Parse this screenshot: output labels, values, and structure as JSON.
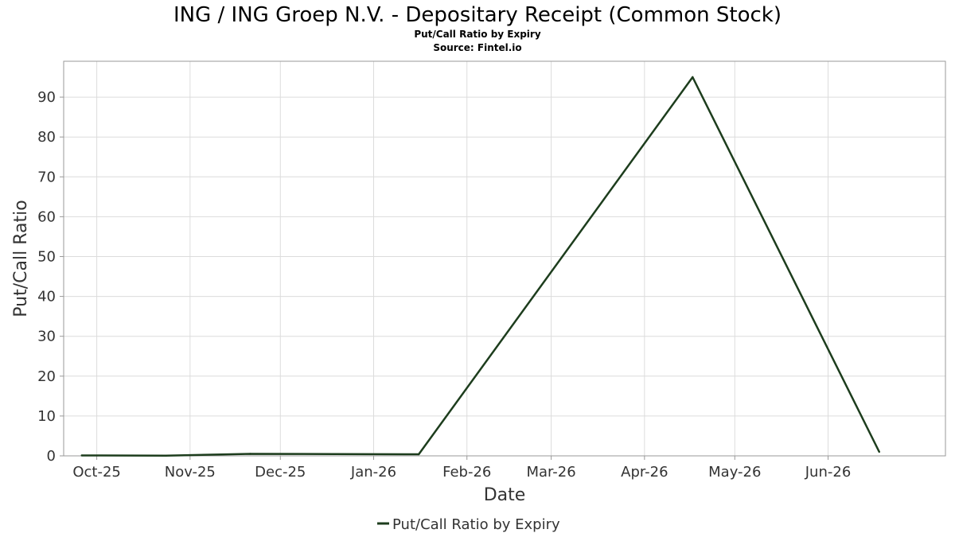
{
  "chart_data": {
    "type": "line",
    "title": "ING / ING Groep N.V. - Depositary Receipt (Common Stock)",
    "subtitle": "Put/Call Ratio by Expiry",
    "source": "Source: Fintel.io",
    "xlabel": "Date",
    "ylabel": "Put/Call Ratio",
    "x_type": "date",
    "xlim": [
      "2025-09-20",
      "2026-07-10"
    ],
    "ylim": [
      0,
      99
    ],
    "x_ticks": [
      {
        "date": "2025-10-01",
        "label": "Oct-25"
      },
      {
        "date": "2025-11-01",
        "label": "Nov-25"
      },
      {
        "date": "2025-12-01",
        "label": "Dec-25"
      },
      {
        "date": "2026-01-01",
        "label": "Jan-26"
      },
      {
        "date": "2026-02-01",
        "label": "Feb-26"
      },
      {
        "date": "2026-03-01",
        "label": "Mar-26"
      },
      {
        "date": "2026-04-01",
        "label": "Apr-26"
      },
      {
        "date": "2026-05-01",
        "label": "May-26"
      },
      {
        "date": "2026-06-01",
        "label": "Jun-26"
      }
    ],
    "y_ticks": [
      0,
      10,
      20,
      30,
      40,
      50,
      60,
      70,
      80,
      90
    ],
    "grid": true,
    "legend_position": "bottom-center",
    "series": [
      {
        "name": "Put/Call Ratio by Expiry",
        "color": "#1d3d1d",
        "x": [
          "2025-09-26",
          "2025-10-24",
          "2025-11-21",
          "2025-12-19",
          "2026-01-16",
          "2026-04-17",
          "2026-06-18"
        ],
        "y": [
          0.1,
          0.05,
          0.5,
          0.45,
          0.4,
          95,
          1
        ]
      }
    ]
  }
}
